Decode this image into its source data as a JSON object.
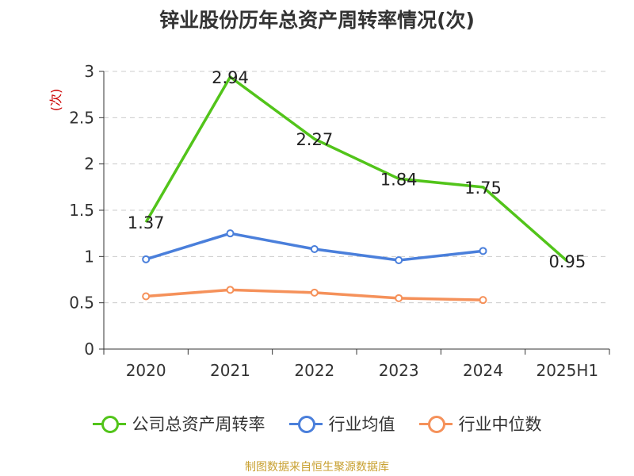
{
  "title": "锌业股份历年总资产周转率情况(次)",
  "source_text": "制图数据来自恒生聚源数据库",
  "colors": {
    "company": "#52c41a",
    "industry_avg": "#4a7fdb",
    "industry_median": "#f5915a",
    "source": "#c8a030",
    "ylabel": "#cc0000"
  },
  "chart_data": {
    "type": "line",
    "title": "锌业股份历年总资产周转率情况(次)",
    "ylabel": "(次)",
    "xlabel": "",
    "categories": [
      "2020",
      "2021",
      "2022",
      "2023",
      "2024",
      "2025H1"
    ],
    "ylim": [
      0,
      3
    ],
    "yticks": [
      "0",
      "0.5",
      "1",
      "1.5",
      "2",
      "2.5",
      "3"
    ],
    "grid": true,
    "legend_position": "bottom",
    "series": [
      {
        "name": "公司总资产周转率",
        "values": [
          1.37,
          2.94,
          2.27,
          1.84,
          1.75,
          0.95
        ],
        "labels": [
          "1.37",
          "2.94",
          "2.27",
          "1.84",
          "1.75",
          "0.95"
        ],
        "markers": false
      },
      {
        "name": "行业均值",
        "values": [
          0.97,
          1.25,
          1.08,
          0.96,
          1.06,
          null
        ],
        "markers": true
      },
      {
        "name": "行业中位数",
        "values": [
          0.57,
          0.64,
          0.61,
          0.55,
          0.53,
          null
        ],
        "markers": true
      }
    ]
  }
}
